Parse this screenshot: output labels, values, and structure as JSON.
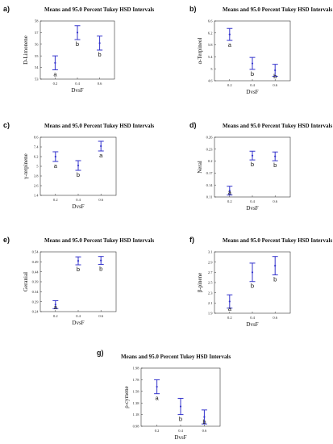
{
  "chart_data": [
    {
      "panel_label": "a)",
      "type": "scatter",
      "title": "Means and 95.0 Percent Tukey HSD Intervals",
      "xlabel": "DvsF",
      "ylabel": "D-Limonene",
      "x_ticks": [
        "0.2",
        "0.4",
        "0.6"
      ],
      "y_ticks": [
        "53",
        "54",
        "55",
        "56",
        "57",
        "58"
      ],
      "ylim": [
        53,
        58
      ],
      "groups": [
        {
          "x": "0.2",
          "mean": 54.4,
          "lower": 53.8,
          "upper": 55.0,
          "letter": "a"
        },
        {
          "x": "0.4",
          "mean": 57.0,
          "lower": 56.4,
          "upper": 57.6,
          "letter": "b"
        },
        {
          "x": "0.6",
          "mean": 56.1,
          "lower": 55.5,
          "upper": 56.7,
          "letter": "b"
        }
      ]
    },
    {
      "panel_label": "b)",
      "type": "scatter",
      "title": "Means and 95.0 Percent Tukey HSD Intervals",
      "xlabel": "DvsF",
      "ylabel": "α-Terpineol",
      "x_ticks": [
        "0.2",
        "0.4",
        "0.6"
      ],
      "y_ticks": [
        "4.6",
        "5",
        "5.4",
        "5.8",
        "6.2",
        "6.6"
      ],
      "ylim": [
        4.6,
        6.6
      ],
      "groups": [
        {
          "x": "0.2",
          "mean": 6.15,
          "lower": 5.95,
          "upper": 6.35,
          "letter": "a"
        },
        {
          "x": "0.4",
          "mean": 5.18,
          "lower": 4.98,
          "upper": 5.38,
          "letter": "b"
        },
        {
          "x": "0.6",
          "mean": 4.95,
          "lower": 4.75,
          "upper": 5.15,
          "letter": "b"
        }
      ]
    },
    {
      "panel_label": "c)",
      "type": "scatter",
      "title": "Means and 95.0 Percent Tukey HSD Intervals",
      "xlabel": "DvsF",
      "ylabel": "γ-terpinene",
      "x_ticks": [
        "0.2",
        "0.4",
        "0.6"
      ],
      "y_ticks": [
        "1.4",
        "2.6",
        "3.8",
        "5",
        "6.2",
        "7.4",
        "8.6"
      ],
      "ylim": [
        1.4,
        8.6
      ],
      "groups": [
        {
          "x": "0.2",
          "mean": 6.2,
          "lower": 5.6,
          "upper": 6.8,
          "letter": "a"
        },
        {
          "x": "0.4",
          "mean": 5.1,
          "lower": 4.5,
          "upper": 5.7,
          "letter": "b"
        },
        {
          "x": "0.6",
          "mean": 7.5,
          "lower": 6.9,
          "upper": 8.1,
          "letter": "a"
        }
      ]
    },
    {
      "panel_label": "d)",
      "type": "scatter",
      "title": "Means and 95.0 Percent Tukey HSD Intervals",
      "xlabel": "DvsF",
      "ylabel": "Neral",
      "x_ticks": [
        "0.2",
        "0.4",
        "0.6"
      ],
      "y_ticks": [
        "0.11",
        "0.14",
        "0.17",
        "0.2",
        "0.23",
        "0.26"
      ],
      "ylim": [
        0.11,
        0.26
      ],
      "groups": [
        {
          "x": "0.2",
          "mean": 0.126,
          "lower": 0.115,
          "upper": 0.137,
          "letter": "a"
        },
        {
          "x": "0.4",
          "mean": 0.214,
          "lower": 0.203,
          "upper": 0.225,
          "letter": "b"
        },
        {
          "x": "0.6",
          "mean": 0.212,
          "lower": 0.201,
          "upper": 0.223,
          "letter": "b"
        }
      ]
    },
    {
      "panel_label": "e)",
      "type": "scatter",
      "title": "Means and 95.0 Percent Tukey HSD Intervals",
      "xlabel": "DvsF",
      "ylabel": "Geranial",
      "x_ticks": [
        "0.2",
        "0.4",
        "0.6"
      ],
      "y_ticks": [
        "0.24",
        "0.29",
        "0.34",
        "0.39",
        "0.44",
        "0.49",
        "0.54"
      ],
      "ylim": [
        0.24,
        0.54
      ],
      "groups": [
        {
          "x": "0.2",
          "mean": 0.275,
          "lower": 0.255,
          "upper": 0.295,
          "letter": "a"
        },
        {
          "x": "0.4",
          "mean": 0.495,
          "lower": 0.475,
          "upper": 0.515,
          "letter": "b"
        },
        {
          "x": "0.6",
          "mean": 0.497,
          "lower": 0.477,
          "upper": 0.517,
          "letter": "b"
        }
      ]
    },
    {
      "panel_label": "f)",
      "type": "scatter",
      "title": "Means and 95.0 Percent Tukey HSD Intervals",
      "xlabel": "DvsF",
      "ylabel": "β-pinene",
      "x_ticks": [
        "0.2",
        "0.4",
        "0.6"
      ],
      "y_ticks": [
        "1.9",
        "2.1",
        "2.3",
        "2.5",
        "2.7",
        "2.9",
        "3.1"
      ],
      "ylim": [
        1.9,
        3.1
      ],
      "groups": [
        {
          "x": "0.2",
          "mean": 2.13,
          "lower": 2.0,
          "upper": 2.26,
          "letter": "a"
        },
        {
          "x": "0.4",
          "mean": 2.7,
          "lower": 2.52,
          "upper": 2.88,
          "letter": "b"
        },
        {
          "x": "0.6",
          "mean": 2.83,
          "lower": 2.65,
          "upper": 3.01,
          "letter": "b"
        }
      ]
    },
    {
      "panel_label": "g)",
      "type": "scatter",
      "title": "Means and 95.0 Percent Tukey HSD Intervals",
      "xlabel": "DvsF",
      "ylabel": "ρ-cymene",
      "x_ticks": [
        "0.2",
        "0.4",
        "0.6"
      ],
      "y_ticks": [
        "0.98",
        "1.18",
        "1.38",
        "1.58",
        "1.78",
        "1.98"
      ],
      "ylim": [
        0.98,
        1.98
      ],
      "groups": [
        {
          "x": "0.2",
          "mean": 1.66,
          "lower": 1.54,
          "upper": 1.78,
          "letter": "a"
        },
        {
          "x": "0.4",
          "mean": 1.32,
          "lower": 1.18,
          "upper": 1.46,
          "letter": "b"
        },
        {
          "x": "0.6",
          "mean": 1.14,
          "lower": 1.02,
          "upper": 1.26,
          "letter": "b"
        }
      ]
    }
  ],
  "colors": {
    "interval": "#3333cc",
    "text": "#111111",
    "frame": "#333333"
  }
}
